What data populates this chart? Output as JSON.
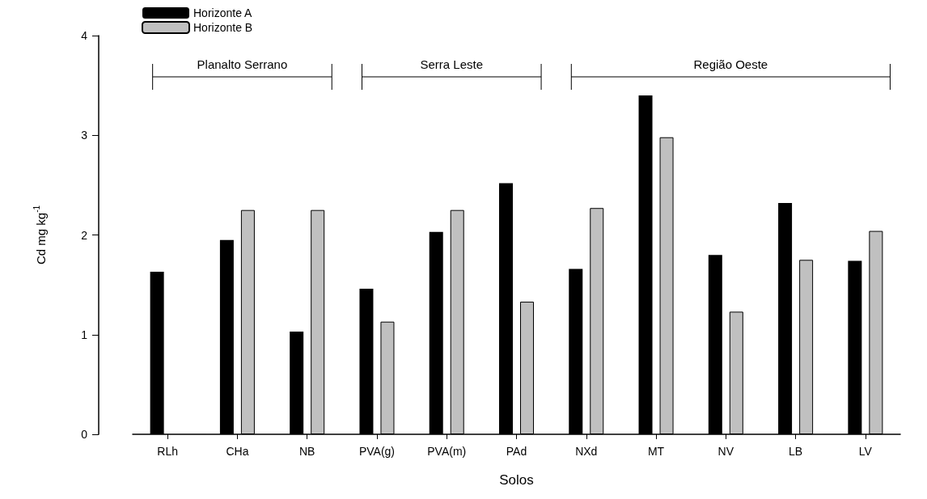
{
  "chart_data": {
    "type": "bar",
    "xlabel": "Solos",
    "ylabel": "Cd mg kg$^{-1}$",
    "categories": [
      "RLh",
      "CHa",
      "NB",
      "PVA(g)",
      "PVA(m)",
      "PAd",
      "NXd",
      "MT",
      "NV",
      "LB",
      "LV"
    ],
    "series": [
      {
        "name": "Horizonte A",
        "color": "#000000",
        "values": [
          1.63,
          1.95,
          1.03,
          1.46,
          2.03,
          2.52,
          1.66,
          3.4,
          1.8,
          2.32,
          1.74
        ]
      },
      {
        "name": "Horizonte B",
        "color": "#c0c0c0",
        "values": [
          null,
          2.25,
          2.25,
          1.13,
          2.25,
          1.33,
          2.27,
          2.98,
          1.23,
          1.75,
          2.04
        ]
      }
    ],
    "ylim": [
      0,
      4
    ],
    "yticks": [
      0,
      1,
      2,
      3,
      4
    ],
    "grid": false,
    "legend": "top left",
    "annotations": [
      "Planalto Serrano",
      "Serra Leste",
      "Região Oeste"
    ]
  }
}
